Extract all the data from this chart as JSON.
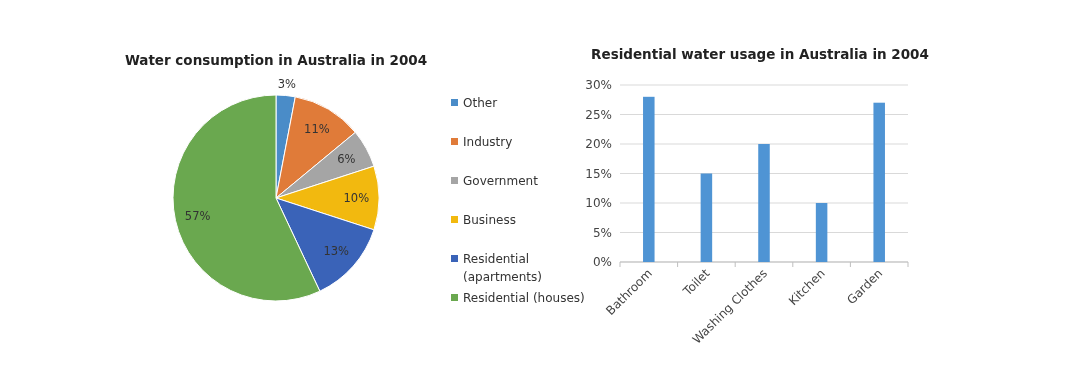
{
  "chart_data": [
    {
      "type": "pie",
      "title": "Water consumption in Australia in 2004",
      "categories": [
        "Other",
        "Industry",
        "Government",
        "Business",
        "Residential (apartments)",
        "Residential (houses)"
      ],
      "values": [
        3,
        11,
        6,
        10,
        13,
        57
      ],
      "colors": [
        "#4a8cc8",
        "#e07b39",
        "#a5a5a5",
        "#f2b90f",
        "#3a63b8",
        "#6aa84f"
      ],
      "value_labels": [
        "3%",
        "11%",
        "6%",
        "10%",
        "13%",
        "57%"
      ],
      "legend": "right"
    },
    {
      "type": "bar",
      "title": "Residential water usage in Australia in 2004",
      "categories": [
        "Bathroom",
        "Toilet",
        "Washing Clothes",
        "Kitchen",
        "Garden"
      ],
      "values": [
        28,
        15,
        20,
        10,
        27
      ],
      "color": "#4f94d4",
      "ylim": [
        0,
        30
      ],
      "yticks": [
        {
          "value": 0,
          "label": "0%"
        },
        {
          "value": 5,
          "label": "5%"
        },
        {
          "value": 10,
          "label": "10%"
        },
        {
          "value": 15,
          "label": "15%"
        },
        {
          "value": 20,
          "label": "20%"
        },
        {
          "value": 25,
          "label": "25%"
        },
        {
          "value": 30,
          "label": "30%"
        }
      ],
      "grid": "y"
    }
  ]
}
